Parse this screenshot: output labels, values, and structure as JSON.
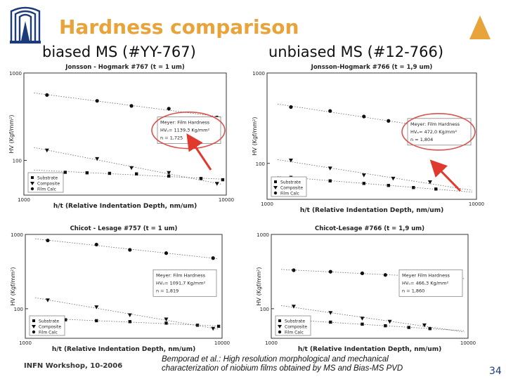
{
  "slide": {
    "title": "Hardness comparison",
    "subtitle_left": "biased MS (#YY-767)",
    "subtitle_right": "unbiased MS (#12-766)",
    "footer_left": "INFN Workshop, 10-2006",
    "citation": "Bemporad et al.: High resolution morphological and mechanical characterization of niobium films obtained by MS and Bias-MS PVD",
    "page_number": "34",
    "colors": {
      "title": "#e8a33a",
      "logo": "#1b3b7a",
      "highlight": "#d9534f",
      "arrow": "#e03a2f"
    }
  },
  "chart_data": [
    {
      "type": "scatter",
      "title": "Jonsson - Hogmark #767 (t = 1 um)",
      "xlabel": "h/t (Relative Indentation Depth, nm/um)",
      "ylabel": "HV (Kgf/mm²)",
      "xscale": "log",
      "yscale": "log",
      "xlim": [
        1000,
        10000
      ],
      "ylim": [
        40,
        1000
      ],
      "x_ticks": [
        "1000",
        "10000"
      ],
      "y_ticks": [
        "1000",
        "100"
      ],
      "legend": {
        "placement": "bottom-left",
        "entries": [
          "Substrate",
          "Composite",
          "Film Calc"
        ]
      },
      "series": [
        {
          "name": "Substrate",
          "marker": "square",
          "x": [
            1600,
            2050,
            2650,
            3600,
            5200,
            7500,
            9600
          ],
          "y": [
            73,
            72,
            71,
            70,
            66,
            62,
            60
          ]
        },
        {
          "name": "Composite",
          "marker": "triangle",
          "x": [
            1300,
            2300,
            3400,
            5200,
            9000
          ],
          "y": [
            130,
            104,
            82,
            72,
            54
          ]
        },
        {
          "name": "Film Calc",
          "marker": "circle",
          "x": [
            1300,
            2300,
            3400,
            5200,
            9000
          ],
          "y": [
            560,
            480,
            420,
            390,
            310
          ]
        }
      ],
      "annotation": {
        "heading": "Meyer: Film Hardness",
        "hv": "HVₒ= 1139,3 Kg/mm²",
        "n": "n = 1,725"
      }
    },
    {
      "type": "scatter",
      "title": "Jonsson-Hogmark #766 (t = 1,9 um)",
      "xlabel": "h/t (Relative Indentation Depth, nm/um)",
      "ylabel": "HV (Kgf/mm²)",
      "xscale": "log",
      "yscale": "log",
      "xlim": [
        1000,
        10000
      ],
      "ylim": [
        40,
        1000
      ],
      "x_ticks": [
        "1000",
        "10000"
      ],
      "y_ticks": [
        "1000",
        "100"
      ],
      "legend": {
        "placement": "bottom-left",
        "entries": [
          "Substrate",
          "Composite",
          "Film Calc"
        ]
      },
      "series": [
        {
          "name": "Substrate",
          "marker": "square",
          "x": [
            1300,
            2000,
            2900,
            3800,
            5000,
            6400
          ],
          "y": [
            70,
            64,
            60,
            57,
            54,
            52
          ]
        },
        {
          "name": "Composite",
          "marker": "triangle",
          "x": [
            1300,
            2000,
            2900,
            4000,
            6000
          ],
          "y": [
            108,
            88,
            74,
            68,
            62
          ]
        },
        {
          "name": "Film Calc",
          "marker": "circle",
          "x": [
            1300,
            2000,
            2900,
            3800,
            5000,
            6400
          ],
          "y": [
            420,
            380,
            330,
            295,
            265,
            245
          ]
        }
      ],
      "annotation": {
        "heading": "Meyer: Film Hardness",
        "hv": "HVₒ= 472,0 Kg/mm²",
        "n": "n = 1,804"
      }
    },
    {
      "type": "scatter",
      "title": "Chicot - Lesage #757 (t = 1 um)",
      "xlabel": "h/t (Relative Indentation Depth, nm/um)",
      "ylabel": "HV (Kgf/mm²)",
      "xscale": "log",
      "yscale": "log",
      "xlim": [
        1000,
        10000
      ],
      "ylim": [
        40,
        1000
      ],
      "x_ticks": [
        "1000",
        "10000"
      ],
      "y_ticks": [
        "1000",
        "100"
      ],
      "legend": {
        "placement": "bottom-left",
        "entries": [
          "Substrate",
          "Composite",
          "Film Calc"
        ]
      },
      "series": [
        {
          "name": "Substrate",
          "marker": "square",
          "x": [
            1600,
            2300,
            3400,
            5200,
            7500,
            9600
          ],
          "y": [
            71,
            69,
            67,
            64,
            60,
            58
          ]
        },
        {
          "name": "Composite",
          "marker": "triangle",
          "x": [
            1300,
            2300,
            3400,
            5200,
            9000
          ],
          "y": [
            130,
            105,
            82,
            72,
            54
          ]
        },
        {
          "name": "Film Calc",
          "marker": "circle",
          "x": [
            1300,
            2300,
            3400,
            5200,
            9000
          ],
          "y": [
            830,
            730,
            620,
            560,
            480
          ]
        }
      ],
      "annotation": {
        "heading": "Meyer: Film Hardness",
        "hv": "HVₒ= 1091,7 Kg/mm²",
        "n": "n = 1,819"
      }
    },
    {
      "type": "scatter",
      "title": "Chicot-Lesage #766 (t = 1,9 um)",
      "xlabel": "h/t (Relative Indentation Depth, nm/um)",
      "ylabel": "HV (Kgf/mm²)",
      "xscale": "log",
      "yscale": "log",
      "xlim": [
        1000,
        10000
      ],
      "ylim": [
        40,
        1000
      ],
      "x_ticks": [
        "1000",
        "10000"
      ],
      "y_ticks": [
        "1000",
        "100"
      ],
      "legend": {
        "placement": "bottom-left",
        "entries": [
          "Substrate",
          "Composite",
          "Film Calc"
        ]
      },
      "series": [
        {
          "name": "Substrate",
          "marker": "square",
          "x": [
            1300,
            2000,
            2900,
            3800,
            5000,
            6400
          ],
          "y": [
            70,
            66,
            62,
            59,
            56,
            54
          ]
        },
        {
          "name": "Composite",
          "marker": "triangle",
          "x": [
            1300,
            2000,
            2900,
            4000,
            6000
          ],
          "y": [
            107,
            88,
            74,
            67,
            60
          ]
        },
        {
          "name": "Film Calc",
          "marker": "circle",
          "x": [
            1300,
            2000,
            2900,
            3800,
            5000,
            6400
          ],
          "y": [
            330,
            315,
            300,
            285,
            275,
            270
          ]
        }
      ],
      "annotation": {
        "heading": "Meyer Film Hardness",
        "hv": "HVₒ= 466,3 Kg/mm²",
        "n": "n = 1,860"
      }
    }
  ]
}
